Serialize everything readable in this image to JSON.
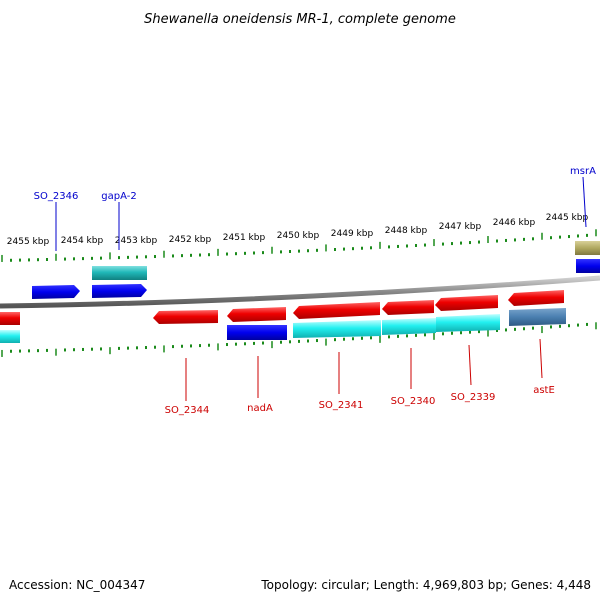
{
  "title": "Shewanella oneidensis MR-1, complete genome",
  "accession_text": "Accession: NC_004347",
  "summary_text": "Topology: circular; Length: 4,969,803 bp; Genes: 4,448",
  "colors": {
    "forward_gene": "#0000ee",
    "reverse_gene": "#ee0000",
    "forward_cds_teal": "#20b8b8",
    "reverse_cds_cyan": "#22f0f0",
    "rna_steel": "#4a7fb0",
    "olive": "#b0a860",
    "ticks": "#1a8a1a",
    "backbone": "#888888"
  },
  "tick_labels": [
    "2455 kbp",
    "2454 kbp",
    "2453 kbp",
    "2452 kbp",
    "2451 kbp",
    "2450 kbp",
    "2449 kbp",
    "2448 kbp",
    "2447 kbp",
    "2446 kbp",
    "2445 kbp"
  ],
  "forward_labels": [
    "SO_2346",
    "gapA-2",
    "msrA"
  ],
  "reverse_labels": [
    "SO_2344",
    "nadA",
    "SO_2341",
    "SO_2340",
    "SO_2339",
    "astE"
  ]
}
